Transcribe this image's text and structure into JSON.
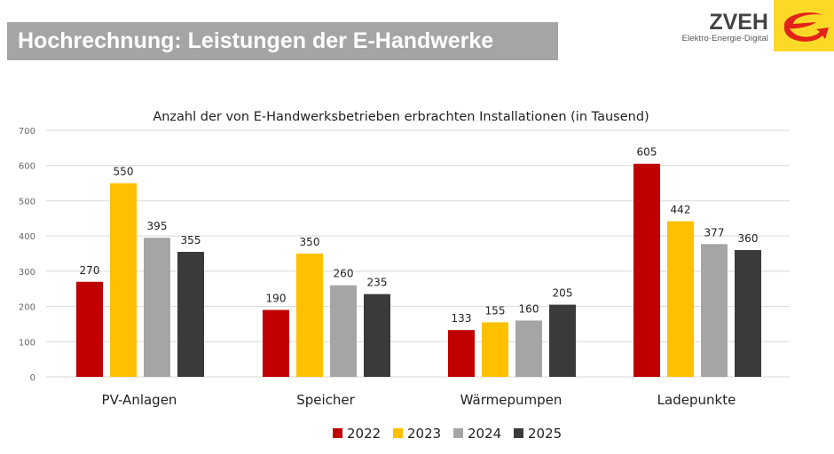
{
  "header": {
    "title": "Hochrechnung: Leistungen der E-Handwerke"
  },
  "logo": {
    "name": "ZVEH",
    "tagline": "Elektro·Energie·Digital",
    "bg_color": "#fbd927",
    "mark_color": "#e2231a"
  },
  "chart_data": {
    "type": "bar",
    "title": "Anzahl der von E-Handwerksbetrieben erbrachten Installationen (in Tausend)",
    "categories": [
      "PV-Anlagen",
      "Speicher",
      "Wärmepumpen",
      "Ladepunkte"
    ],
    "series": [
      {
        "name": "2022",
        "color": "#c00000",
        "values": [
          270,
          190,
          133,
          605
        ]
      },
      {
        "name": "2023",
        "color": "#ffc000",
        "values": [
          550,
          350,
          155,
          442
        ]
      },
      {
        "name": "2024",
        "color": "#a5a5a5",
        "values": [
          395,
          260,
          160,
          377
        ]
      },
      {
        "name": "2025",
        "color": "#3a3a3a",
        "values": [
          355,
          235,
          205,
          360
        ]
      }
    ],
    "ylim": [
      0,
      700
    ],
    "yticks": [
      0,
      100,
      200,
      300,
      400,
      500,
      600,
      700
    ],
    "grid": true,
    "legend": "bottom",
    "data_labels": true
  }
}
